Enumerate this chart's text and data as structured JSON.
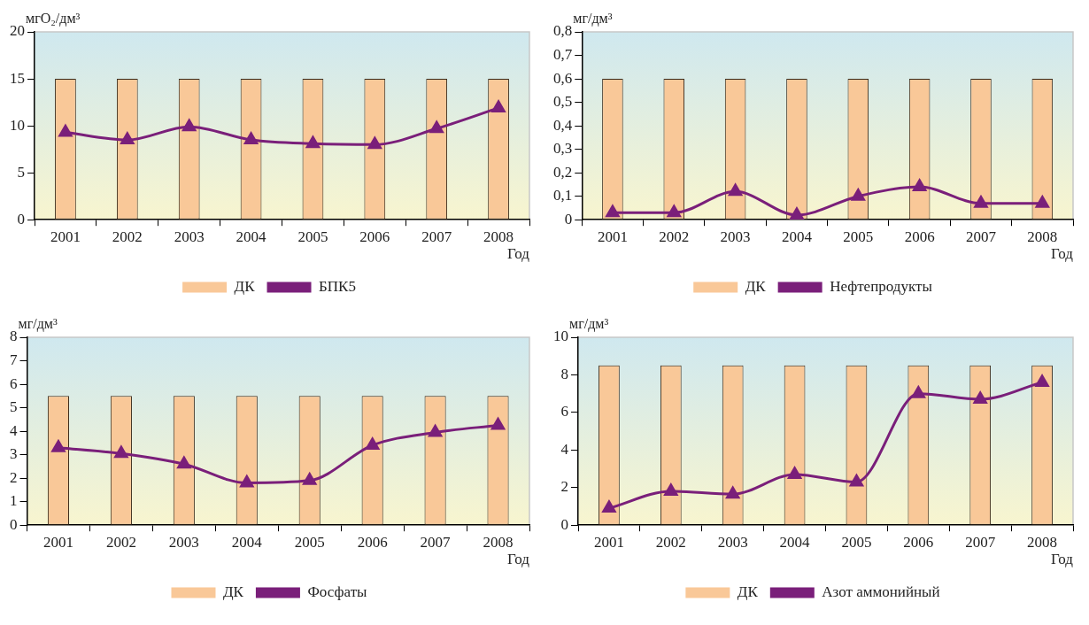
{
  "chart_data": [
    {
      "type": "bar",
      "ylabel": "мгO₂/дм³",
      "xlabel": "Год",
      "categories": [
        "2001",
        "2002",
        "2003",
        "2004",
        "2005",
        "2006",
        "2007",
        "2008"
      ],
      "ylim": [
        0,
        20
      ],
      "yticks": [
        0,
        5,
        10,
        15,
        20
      ],
      "grid": false,
      "legend": "bottom",
      "marker": "triangle",
      "series": [
        {
          "name": "ДК",
          "color": "#f9c898",
          "values": [
            15,
            15,
            15,
            15,
            15,
            15,
            15,
            15
          ]
        },
        {
          "name": "БПК5",
          "type": "line",
          "color": "#7a1f7a",
          "values": [
            9.3,
            8.5,
            9.9,
            8.5,
            8.1,
            8.0,
            9.7,
            11.9
          ]
        }
      ]
    },
    {
      "type": "bar",
      "ylabel": "мг/дм³",
      "xlabel": "Год",
      "categories": [
        "2001",
        "2002",
        "2003",
        "2004",
        "2005",
        "2006",
        "2007",
        "2008"
      ],
      "ylim": [
        0,
        0.8
      ],
      "yticks": [
        {
          "value": 0,
          "label": "0"
        },
        {
          "value": 0.1,
          "label": "0,1"
        },
        {
          "value": 0.2,
          "label": "0,2"
        },
        {
          "value": 0.3,
          "label": "0,3"
        },
        {
          "value": 0.4,
          "label": "0,4"
        },
        {
          "value": 0.5,
          "label": "0,5"
        },
        {
          "value": 0.6,
          "label": "0,6"
        },
        {
          "value": 0.7,
          "label": "0,7"
        },
        {
          "value": 0.8,
          "label": "0,8"
        }
      ],
      "grid": false,
      "legend": "bottom",
      "marker": "triangle",
      "series": [
        {
          "name": "ДК",
          "color": "#f9c898",
          "values": [
            0.6,
            0.6,
            0.6,
            0.6,
            0.6,
            0.6,
            0.6,
            0.6
          ]
        },
        {
          "name": "Нефтепродукты",
          "type": "line",
          "color": "#7a1f7a",
          "values": [
            0.03,
            0.03,
            0.12,
            0.02,
            0.1,
            0.14,
            0.07,
            0.07
          ]
        }
      ]
    },
    {
      "type": "bar",
      "ylabel": "мг/дм³",
      "xlabel": "Год",
      "categories": [
        "2001",
        "2002",
        "2003",
        "2004",
        "2005",
        "2006",
        "2007",
        "2008"
      ],
      "ylim": [
        0,
        8
      ],
      "yticks": [
        0,
        1,
        2,
        3,
        4,
        5,
        6,
        7,
        8
      ],
      "grid": false,
      "legend": "bottom",
      "marker": "triangle",
      "series": [
        {
          "name": "ДК",
          "color": "#f9c898",
          "values": [
            5.5,
            5.5,
            5.5,
            5.5,
            5.5,
            5.5,
            5.5,
            5.5
          ]
        },
        {
          "name": "Фосфаты",
          "type": "line",
          "color": "#7a1f7a",
          "values": [
            3.3,
            3.05,
            2.6,
            1.8,
            1.9,
            3.4,
            3.95,
            4.25
          ]
        }
      ]
    },
    {
      "type": "bar",
      "ylabel": "мг/дм³",
      "xlabel": "Год",
      "categories": [
        "2001",
        "2002",
        "2003",
        "2004",
        "2005",
        "2006",
        "2007",
        "2008"
      ],
      "ylim": [
        0,
        10
      ],
      "yticks": [
        0,
        2,
        4,
        6,
        8,
        10
      ],
      "grid": false,
      "legend": "bottom",
      "marker": "triangle",
      "series": [
        {
          "name": "ДК",
          "color": "#f9c898",
          "values": [
            8.5,
            8.5,
            8.5,
            8.5,
            8.5,
            8.5,
            8.5,
            8.5
          ]
        },
        {
          "name": "Азот аммонийный",
          "type": "line",
          "color": "#7a1f7a",
          "values": [
            0.9,
            1.8,
            1.65,
            2.7,
            2.3,
            7.0,
            6.7,
            7.6
          ]
        }
      ]
    }
  ]
}
